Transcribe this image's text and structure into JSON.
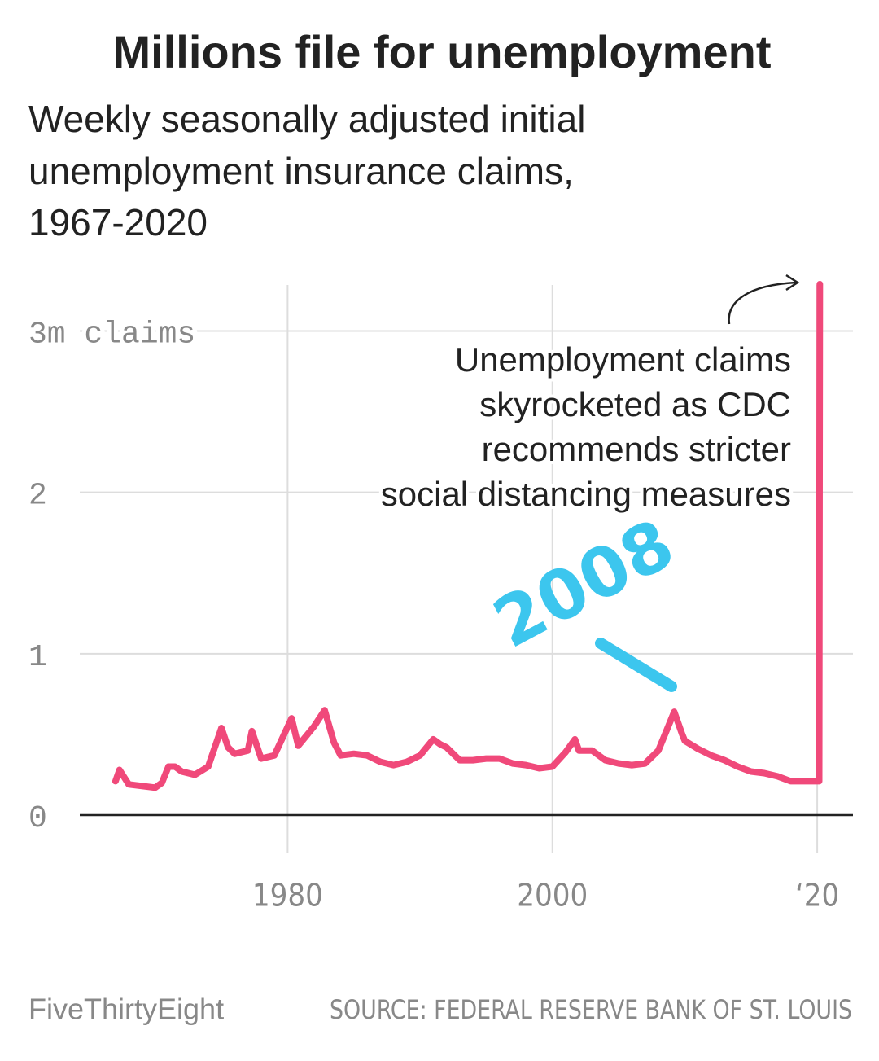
{
  "chart_data": {
    "type": "line",
    "title": "Millions file for unemployment",
    "subtitle": [
      "Weekly seasonally adjusted initial",
      "unemployment insurance claims,",
      "1967-2020"
    ],
    "annotation": [
      "Unemployment claims",
      "skyrocketed as CDC",
      "recommends stricter",
      "social distancing measures"
    ],
    "handwritten_note": "2008",
    "x": [
      1967.0,
      1967.3,
      1968,
      1969,
      1970,
      1970.5,
      1971,
      1971.5,
      1972,
      1973,
      1974,
      1975,
      1975.5,
      1976,
      1977,
      1977.3,
      1978,
      1979,
      1980.3,
      1980.8,
      1981,
      1982,
      1982.8,
      1983.5,
      1984,
      1985,
      1986,
      1987,
      1988,
      1989,
      1990,
      1991,
      1991.5,
      1992,
      1993,
      1994,
      1995,
      1996,
      1997,
      1998,
      1999,
      2000,
      2001,
      2001.7,
      2002,
      2003,
      2004,
      2005,
      2006,
      2007,
      2008,
      2009.2,
      2009.8,
      2010,
      2011,
      2012,
      2013,
      2014,
      2015,
      2016,
      2017,
      2018,
      2019,
      2020.15,
      2020.2
    ],
    "values": [
      0.21,
      0.28,
      0.19,
      0.18,
      0.17,
      0.2,
      0.3,
      0.3,
      0.27,
      0.25,
      0.3,
      0.54,
      0.42,
      0.38,
      0.4,
      0.52,
      0.35,
      0.37,
      0.6,
      0.43,
      0.45,
      0.55,
      0.65,
      0.45,
      0.37,
      0.38,
      0.37,
      0.33,
      0.31,
      0.33,
      0.37,
      0.47,
      0.44,
      0.42,
      0.34,
      0.34,
      0.35,
      0.35,
      0.32,
      0.31,
      0.29,
      0.3,
      0.39,
      0.47,
      0.4,
      0.4,
      0.34,
      0.32,
      0.31,
      0.32,
      0.4,
      0.64,
      0.5,
      0.46,
      0.41,
      0.37,
      0.34,
      0.3,
      0.27,
      0.26,
      0.24,
      0.21,
      0.21,
      0.21,
      3.29
    ],
    "color": "#f0497a",
    "xlim": [
      1964.3,
      2022.7
    ],
    "xticks": [
      1980,
      2000,
      {
        "value": 2020,
        "label": "‘20"
      }
    ],
    "ylim": [
      0,
      3.3
    ],
    "yticks": [
      0,
      1,
      2,
      {
        "value": 3,
        "label": "3m claims"
      }
    ],
    "grid": true,
    "footer_left": "FiveThirtyEight",
    "footer_right": "SOURCE: FEDERAL RESERVE BANK OF ST. LOUIS"
  }
}
